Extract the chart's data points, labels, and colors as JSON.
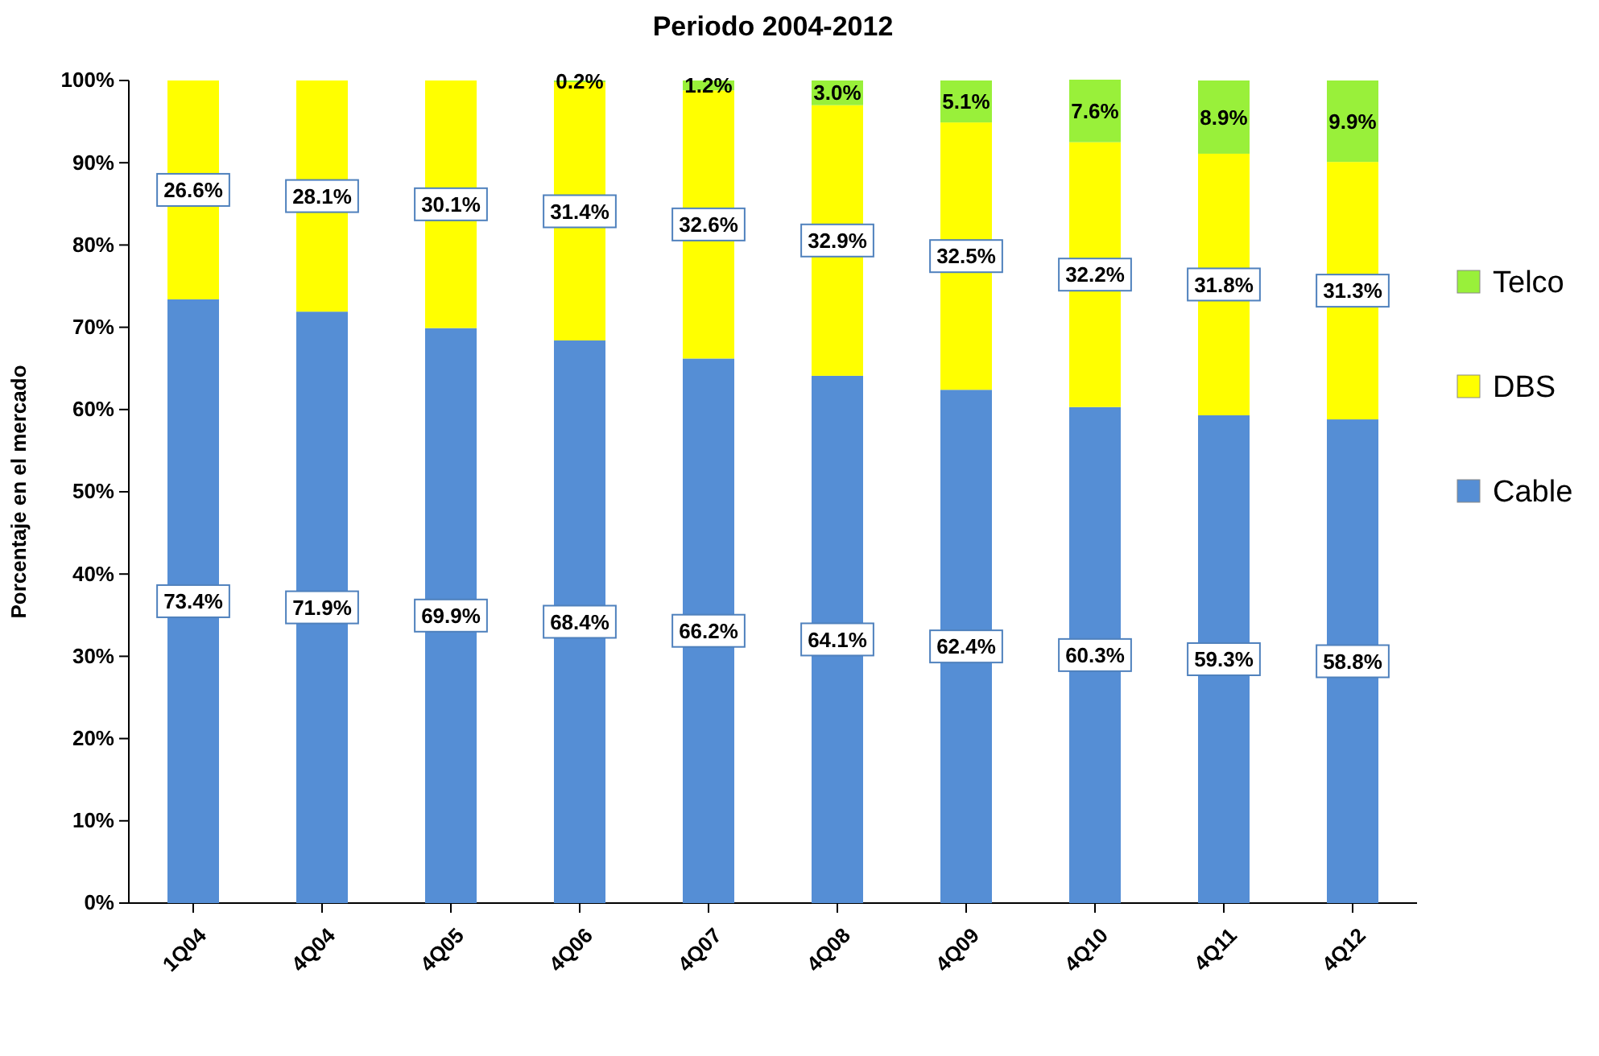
{
  "chart_data": {
    "type": "bar",
    "stacked": true,
    "title": "Periodo 2004-2012",
    "ylabel": "Porcentaje en el mercado",
    "categories": [
      "1Q04",
      "4Q04",
      "4Q05",
      "4Q06",
      "4Q07",
      "4Q08",
      "4Q09",
      "4Q10",
      "4Q11",
      "4Q12"
    ],
    "series": [
      {
        "name": "Cable",
        "color": "#558ed5",
        "values": [
          73.4,
          71.9,
          69.9,
          68.4,
          66.2,
          64.1,
          62.4,
          60.3,
          59.3,
          58.8
        ],
        "value_labels": [
          "73.4%",
          "71.9%",
          "69.9%",
          "68.4%",
          "66.2%",
          "64.1%",
          "62.4%",
          "60.3%",
          "59.3%",
          "58.8%"
        ]
      },
      {
        "name": "DBS",
        "color": "#ffff00",
        "values": [
          26.6,
          28.1,
          30.1,
          31.4,
          32.6,
          32.9,
          32.5,
          32.2,
          31.8,
          31.3
        ],
        "value_labels": [
          "26.6%",
          "28.1%",
          "30.1%",
          "31.4%",
          "32.6%",
          "32.9%",
          "32.5%",
          "32.2%",
          "31.8%",
          "31.3%"
        ]
      },
      {
        "name": "Telco",
        "color": "#99f03a",
        "values": [
          0,
          0,
          0,
          0.2,
          1.2,
          3.0,
          5.1,
          7.6,
          8.9,
          9.9
        ],
        "value_labels": [
          null,
          null,
          null,
          "0.2%",
          "1.2%",
          "3.0%",
          "5.1%",
          "7.6%",
          "8.9%",
          "9.9%"
        ]
      }
    ],
    "ylim": [
      0,
      100
    ],
    "yticks": [
      {
        "value": 0,
        "label": "0%"
      },
      {
        "value": 10,
        "label": "10%"
      },
      {
        "value": 20,
        "label": "20%"
      },
      {
        "value": 30,
        "label": "30%"
      },
      {
        "value": 40,
        "label": "40%"
      },
      {
        "value": 50,
        "label": "50%"
      },
      {
        "value": 60,
        "label": "60%"
      },
      {
        "value": 70,
        "label": "70%"
      },
      {
        "value": 80,
        "label": "80%"
      },
      {
        "value": 90,
        "label": "90%"
      },
      {
        "value": 100,
        "label": "100%"
      }
    ],
    "grid": false,
    "legend": "right"
  }
}
